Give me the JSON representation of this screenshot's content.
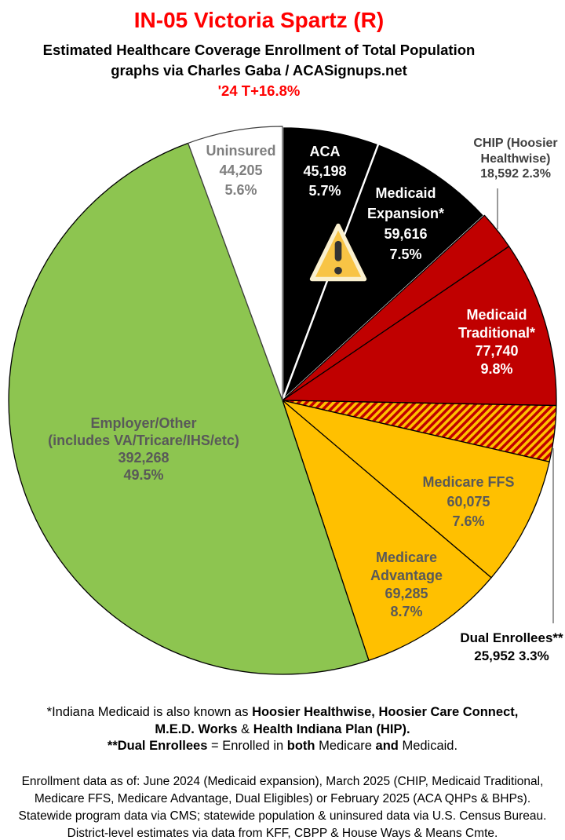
{
  "header": {
    "title": "IN-05 Victoria Spartz (R)",
    "subtitle_line1": "Estimated Healthcare Coverage Enrollment of Total Population",
    "subtitle_line2": "graphs via Charles Gaba / ACASignups.net",
    "delta_note": "'24 T+16.8%",
    "title_color": "#ff0000",
    "delta_color": "#ff0000"
  },
  "chart_data": {
    "type": "pie",
    "direction": "clockwise",
    "start_angle_deg": 0,
    "slices": [
      {
        "id": "aca",
        "label": "ACA",
        "value": 45198,
        "value_text": "45,198",
        "pct": 5.7,
        "pct_text": "5.7%",
        "fill": "#000000",
        "stroke": "#ffffff",
        "stroke_width": 2.4,
        "label_color": "#ffffff",
        "label_lines": [
          "ACA",
          "45,198",
          "5.7%"
        ]
      },
      {
        "id": "medicaid_expansion",
        "label": "Medicaid Expansion*",
        "value": 59616,
        "value_text": "59,616",
        "pct": 7.5,
        "pct_text": "7.5%",
        "fill": "#000000",
        "stroke": "#ffffff",
        "stroke_width": 2.4,
        "label_color": "#ffffff",
        "label_lines": [
          "Medicaid",
          "Expansion*",
          "59,616",
          "7.5%"
        ]
      },
      {
        "id": "chip",
        "label": "CHIP (Hoosier Healthwise)",
        "value": 18592,
        "value_text": "18,592",
        "pct": 2.3,
        "pct_text": "2.3%",
        "fill": "#c00000",
        "stroke": "#000000",
        "stroke_width": 1.3,
        "label_color": "#3f3f3f",
        "label_lines": [
          "CHIP (Hoosier",
          "Healthwise)",
          "18,592 2.3%"
        ]
      },
      {
        "id": "medicaid_traditional",
        "label": "Medicaid Traditional*",
        "value": 77740,
        "value_text": "77,740",
        "pct": 9.8,
        "pct_text": "9.8%",
        "fill": "#c00000",
        "stroke": "#000000",
        "stroke_width": 1.3,
        "label_color": "#ffffff",
        "label_lines": [
          "Medicaid",
          "Traditional*",
          "77,740",
          "9.8%"
        ]
      },
      {
        "id": "dual_enrollees",
        "label": "Dual Enrollees**",
        "value": 25952,
        "value_text": "25,952",
        "pct": 3.3,
        "pct_text": "3.3%",
        "fill": "hatch",
        "hatch_colors": [
          "#c00000",
          "#ffc000"
        ],
        "stroke": "#000000",
        "stroke_width": 1.3,
        "label_color": "#000000",
        "label_lines": [
          "Dual Enrollees**",
          "25,952 3.3%"
        ]
      },
      {
        "id": "medicare_ffs",
        "label": "Medicare FFS",
        "value": 60075,
        "value_text": "60,075",
        "pct": 7.6,
        "pct_text": "7.6%",
        "fill": "#ffc000",
        "stroke": "#000000",
        "stroke_width": 1.3,
        "label_color": "#595959",
        "label_lines": [
          "Medicare FFS",
          "60,075",
          "7.6%"
        ]
      },
      {
        "id": "medicare_advantage",
        "label": "Medicare Advantage",
        "value": 69285,
        "value_text": "69,285",
        "pct": 8.7,
        "pct_text": "8.7%",
        "fill": "#ffc000",
        "stroke": "#000000",
        "stroke_width": 1.3,
        "label_color": "#595959",
        "label_lines": [
          "Medicare",
          "Advantage",
          "69,285",
          "8.7%"
        ]
      },
      {
        "id": "employer_other",
        "label": "Employer/Other (includes VA/Tricare/IHS/etc)",
        "value": 392268,
        "value_text": "392,268",
        "pct": 49.5,
        "pct_text": "49.5%",
        "fill": "#8dc550",
        "stroke": "#000000",
        "stroke_width": 1.3,
        "label_color": "#595959",
        "label_lines": [
          "Employer/Other",
          "(includes VA/Tricare/IHS/etc)",
          "392,268",
          "49.5%"
        ]
      },
      {
        "id": "uninsured",
        "label": "Uninsured",
        "value": 44205,
        "value_text": "44,205",
        "pct": 5.6,
        "pct_text": "5.6%",
        "fill": "#ffffff",
        "stroke": "#3f3f3f",
        "stroke_width": 1.2,
        "label_color": "#7f7f7f",
        "label_lines": [
          "Uninsured",
          "44,205",
          "5.6%"
        ]
      }
    ],
    "callout_color": "#808080"
  },
  "icons": {
    "warning": {
      "glyph": "⚠",
      "fill": "#f8c445",
      "outline": "#faf0ce",
      "mark_color": "#333333"
    }
  },
  "footnotes": {
    "lines": [
      [
        {
          "text": "*Indiana Medicaid is also known as ",
          "bold": false
        },
        {
          "text": "Hoosier Healthwise, Hoosier Care Connect,",
          "bold": true
        }
      ],
      [
        {
          "text": "M.E.D. Works",
          "bold": true
        },
        {
          "text": " & ",
          "bold": false
        },
        {
          "text": "Health Indiana Plan (HIP).",
          "bold": true
        }
      ],
      [
        {
          "text": "**Dual Enrollees",
          "bold": true
        },
        {
          "text": " = Enrolled in ",
          "bold": false
        },
        {
          "text": "both",
          "bold": true
        },
        {
          "text": " Medicare ",
          "bold": false
        },
        {
          "text": "and",
          "bold": true
        },
        {
          "text": " Medicaid.",
          "bold": false
        }
      ]
    ]
  },
  "source": {
    "lines": [
      "Enrollment data as of: June 2024 (Medicaid expansion), March 2025 (CHIP, Medicaid Traditional,",
      "Medicare FFS, Medicare Advantage, Dual Eligibles) or February 2025 (ACA QHPs & BHPs).",
      "Statewide program data via CMS; statewide population & uninsured data via U.S. Census Bureau.",
      "District-level estimates via data from KFF, CBPP & House Ways & Means Cmte."
    ]
  }
}
